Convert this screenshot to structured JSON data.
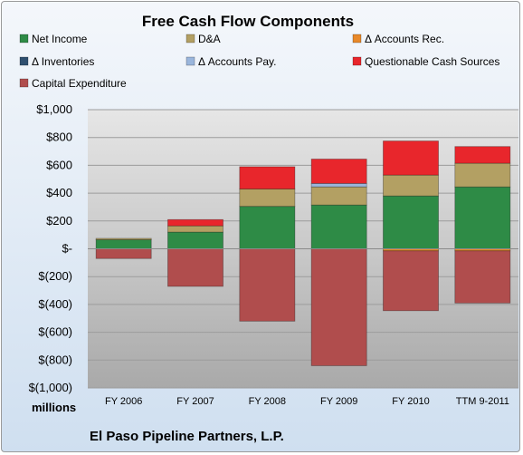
{
  "chart_data": {
    "type": "bar",
    "stacked": true,
    "title": "Free Cash Flow Components",
    "unit_label": "millions",
    "company": "El Paso Pipeline Partners, L.P.",
    "categories": [
      "FY 2006",
      "FY 2007",
      "FY 2008",
      "FY 2009",
      "FY 2010",
      "TTM 9-2011"
    ],
    "y_ticks": [
      {
        "value": 1000,
        "label": "$1,000"
      },
      {
        "value": 800,
        "label": "$800"
      },
      {
        "value": 600,
        "label": "$600"
      },
      {
        "value": 400,
        "label": "$400"
      },
      {
        "value": 200,
        "label": "$200"
      },
      {
        "value": 0,
        "label": "$-"
      },
      {
        "value": -200,
        "label": "$(200)"
      },
      {
        "value": -400,
        "label": "$(400)"
      },
      {
        "value": -600,
        "label": "$(600)"
      },
      {
        "value": -800,
        "label": "$(800)"
      },
      {
        "value": -1000,
        "label": "$(1,000)"
      }
    ],
    "ylim": [
      -1000,
      1000
    ],
    "grid": true,
    "legend_position": "top",
    "series": [
      {
        "name": "Net Income",
        "color": "#2e8b46",
        "values": [
          65,
          120,
          305,
          315,
          380,
          445
        ]
      },
      {
        "name": "D&A",
        "color": "#b3a063",
        "values": [
          10,
          45,
          125,
          130,
          150,
          170
        ]
      },
      {
        "name": "Δ Accounts Rec.",
        "color": "#e8892a",
        "values": [
          0,
          0,
          0,
          0,
          -15,
          -15
        ]
      },
      {
        "name": "Δ Inventories",
        "color": "#2f4f6f",
        "values": [
          0,
          0,
          0,
          0,
          0,
          0
        ]
      },
      {
        "name": "Δ Accounts Pay.",
        "color": "#9ab6dc",
        "values": [
          0,
          0,
          0,
          25,
          0,
          0
        ]
      },
      {
        "name": "Questionable Cash Sources",
        "color": "#e8262c",
        "values": [
          0,
          45,
          160,
          175,
          245,
          120
        ]
      },
      {
        "name": "Capital Expenditure",
        "color": "#b04d4d",
        "values": [
          -70,
          -270,
          -520,
          -840,
          -430,
          -375
        ]
      }
    ]
  }
}
